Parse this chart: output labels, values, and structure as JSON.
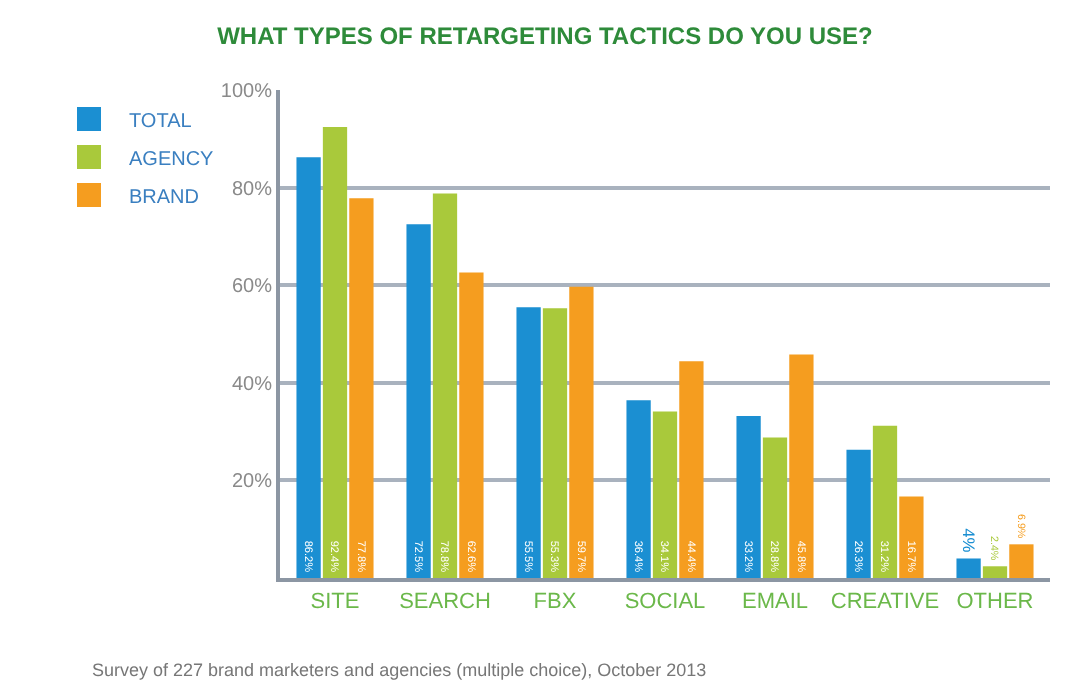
{
  "chart_data": {
    "type": "bar",
    "title": "WHAT TYPES OF RETARGETING TACTICS DO YOU USE?",
    "categories": [
      "SITE",
      "SEARCH",
      "FBX",
      "SOCIAL",
      "EMAIL",
      "CREATIVE",
      "OTHER"
    ],
    "series": [
      {
        "name": "TOTAL",
        "color": "#1b8fd2",
        "values": [
          86.2,
          72.5,
          55.5,
          36.4,
          33.2,
          26.3,
          4
        ],
        "value_labels": [
          "86.2%",
          "72.5%",
          "55.5%",
          "36.4%",
          "33.2%",
          "26.3%",
          "4%"
        ]
      },
      {
        "name": "AGENCY",
        "color": "#a9c93b",
        "values": [
          92.4,
          78.8,
          55.3,
          34.1,
          28.8,
          31.2,
          2.4
        ],
        "value_labels": [
          "92.4%",
          "78.8%",
          "55.3%",
          "34.1%",
          "28.8%",
          "31.2%",
          "2.4%"
        ]
      },
      {
        "name": "BRAND",
        "color": "#f59d1f",
        "values": [
          77.8,
          62.6,
          59.7,
          44.4,
          45.8,
          16.7,
          6.9
        ],
        "value_labels": [
          "77.8%",
          "62.6%",
          "59.7%",
          "44.4%",
          "45.8%",
          "16.7%",
          "6.9%"
        ]
      }
    ],
    "ylim": [
      0,
      100
    ],
    "yticks": [
      {
        "value": 0,
        "label": null
      },
      {
        "value": 20,
        "label": "20%"
      },
      {
        "value": 40,
        "label": "40%"
      },
      {
        "value": 60,
        "label": "60%"
      },
      {
        "value": 80,
        "label": "80%"
      },
      {
        "value": 100,
        "label": "100%"
      }
    ],
    "grid": "y",
    "legend": "left",
    "annotations": [
      "Survey of 227 brand marketers and agencies (multiple choice), October 2013"
    ]
  }
}
